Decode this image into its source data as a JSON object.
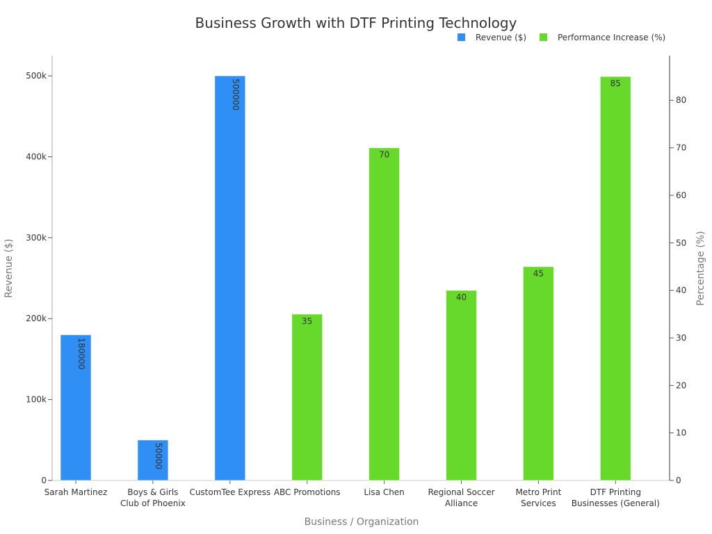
{
  "chart_data": {
    "type": "bar",
    "title": "Business Growth with DTF Printing Technology",
    "xlabel": "Business / Organization",
    "ylabel": "Revenue ($)",
    "y2label": "Percentage (%)",
    "categories": [
      "Sarah Martinez",
      "Boys & Girls Club of Phoenix",
      "CustomTee Express",
      "ABC Promotions",
      "Lisa Chen",
      "Regional Soccer Alliance",
      "Metro Print Services",
      "DTF Printing Businesses (General)"
    ],
    "category_lines": [
      [
        "Sarah Martinez"
      ],
      [
        "Boys & Girls",
        "Club of Phoenix"
      ],
      [
        "CustomTee Express"
      ],
      [
        "ABC Promotions"
      ],
      [
        "Lisa Chen"
      ],
      [
        "Regional Soccer",
        "Alliance"
      ],
      [
        "Metro Print",
        "Services"
      ],
      [
        "DTF Printing",
        "Businesses (General)"
      ]
    ],
    "ylim": [
      0,
      525000
    ],
    "y_ticks": [
      0,
      100000,
      200000,
      300000,
      400000,
      500000
    ],
    "y_tick_labels": [
      "0",
      "100k",
      "200k",
      "300k",
      "400k",
      "500k"
    ],
    "y2lim": [
      0,
      89.4
    ],
    "y2_ticks": [
      0,
      10,
      20,
      30,
      40,
      50,
      60,
      70,
      80
    ],
    "y2_tick_labels": [
      "0",
      "10",
      "20",
      "30",
      "40",
      "50",
      "60",
      "70",
      "80"
    ],
    "legend_position": "top-right",
    "series": [
      {
        "name": "Revenue ($)",
        "axis": "left",
        "color": "#2f8ff5",
        "values": [
          180000,
          50000,
          500000,
          null,
          null,
          null,
          null,
          null
        ],
        "labels": [
          "180000",
          "50000",
          "500000",
          null,
          null,
          null,
          null,
          null
        ]
      },
      {
        "name": "Performance Increase (%)",
        "axis": "right",
        "color": "#66d92a",
        "values": [
          null,
          null,
          null,
          35,
          70,
          40,
          45,
          85
        ],
        "labels": [
          null,
          null,
          null,
          "35",
          "70",
          "40",
          "45",
          "85"
        ]
      }
    ]
  }
}
